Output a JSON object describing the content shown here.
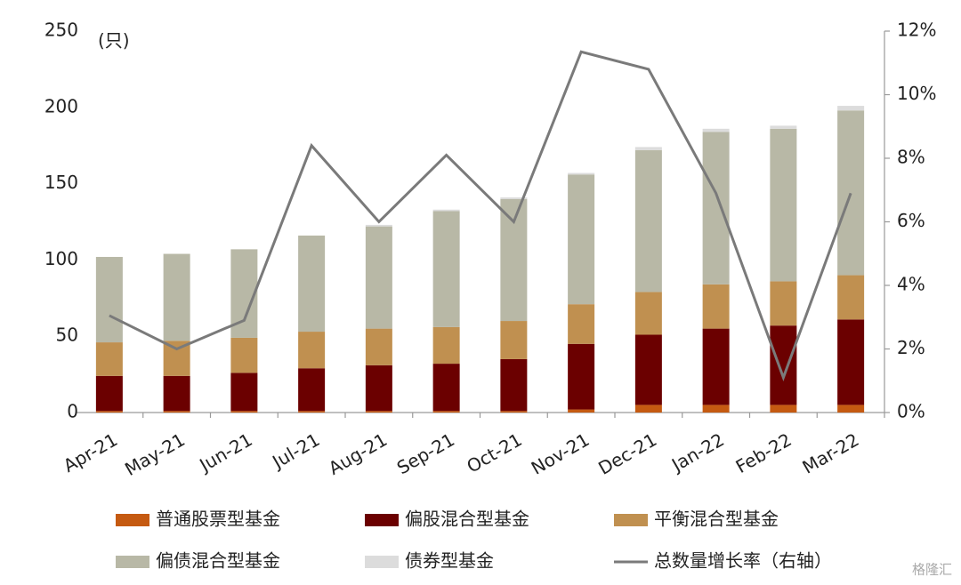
{
  "chart_data": {
    "type": "bar",
    "stacked": true,
    "ylabel": "(只)",
    "watermark": "格隆汇",
    "categories": [
      "Apr-21",
      "May-21",
      "Jun-21",
      "Jul-21",
      "Aug-21",
      "Sep-21",
      "Oct-21",
      "Nov-21",
      "Dec-21",
      "Jan-22",
      "Feb-22",
      "Mar-22"
    ],
    "series": [
      {
        "name": "普通股票型基金",
        "color": "#c55a11",
        "values": [
          1,
          1,
          1,
          1,
          1,
          1,
          1,
          2,
          5,
          5,
          5,
          5
        ]
      },
      {
        "name": "偏股混合型基金",
        "color": "#6b0000",
        "values": [
          23,
          23,
          25,
          28,
          30,
          31,
          34,
          43,
          46,
          50,
          52,
          56
        ]
      },
      {
        "name": "平衡混合型基金",
        "color": "#c09050",
        "values": [
          22,
          23,
          23,
          24,
          24,
          24,
          25,
          26,
          28,
          29,
          29,
          29
        ]
      },
      {
        "name": "偏债混合型基金",
        "color": "#b8b8a6",
        "values": [
          56,
          57,
          58,
          63,
          67,
          76,
          80,
          85,
          93,
          100,
          100,
          108
        ]
      },
      {
        "name": "债券型基金",
        "color": "#dcdcdc",
        "values": [
          0,
          0,
          0,
          0,
          1,
          1,
          1,
          1,
          2,
          2,
          2,
          3
        ]
      },
      {
        "name": "总数量增长率（右轴）",
        "color": "#7a7a7a",
        "type": "line",
        "axis": "y2",
        "values": [
          3.05,
          2.0,
          2.9,
          8.4,
          6.0,
          8.1,
          6.0,
          11.35,
          10.8,
          6.9,
          1.1,
          6.9
        ]
      }
    ],
    "ylim": [
      0,
      250
    ],
    "yticks": [
      0,
      50,
      100,
      150,
      200,
      250
    ],
    "y2lim": [
      0,
      12
    ],
    "y2ticks": [
      {
        "value": 0,
        "label": "0%"
      },
      {
        "value": 2,
        "label": "2%"
      },
      {
        "value": 4,
        "label": "4%"
      },
      {
        "value": 6,
        "label": "6%"
      },
      {
        "value": 8,
        "label": "8%"
      },
      {
        "value": 10,
        "label": "10%"
      },
      {
        "value": 12,
        "label": "12%"
      }
    ],
    "grid": false
  }
}
